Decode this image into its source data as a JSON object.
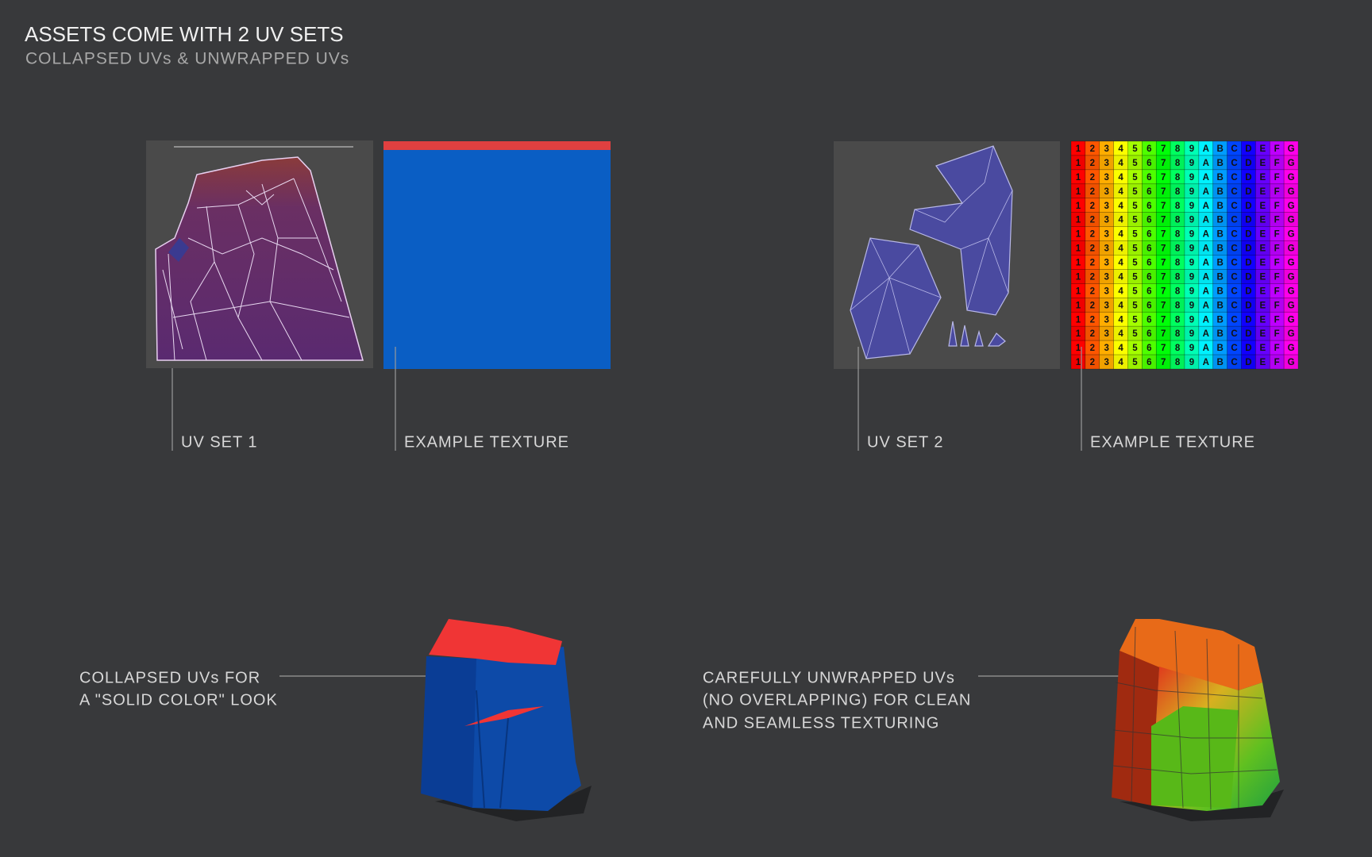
{
  "header": {
    "title": "ASSETS COME WITH 2 UV SETS",
    "subtitle": "COLLAPSED UVs & UNWRAPPED UVs"
  },
  "panels": [
    {
      "label": "UV SET 1"
    },
    {
      "label": "EXAMPLE TEXTURE"
    },
    {
      "label": "UV SET 2"
    },
    {
      "label": "EXAMPLE TEXTURE"
    }
  ],
  "texture_grid": {
    "columns": [
      "1",
      "2",
      "3",
      "4",
      "5",
      "6",
      "7",
      "8",
      "9",
      "A",
      "B",
      "C",
      "D",
      "E",
      "F",
      "G"
    ],
    "rows": 16
  },
  "captions": [
    {
      "lines": [
        "COLLAPSED UVs FOR",
        "A \"SOLID COLOR\" LOOK"
      ]
    },
    {
      "lines": [
        "CAREFULLY UNWRAPPED UVs",
        "(NO OVERLAPPING) FOR CLEAN",
        "AND SEAMLESS TEXTURING"
      ]
    }
  ]
}
